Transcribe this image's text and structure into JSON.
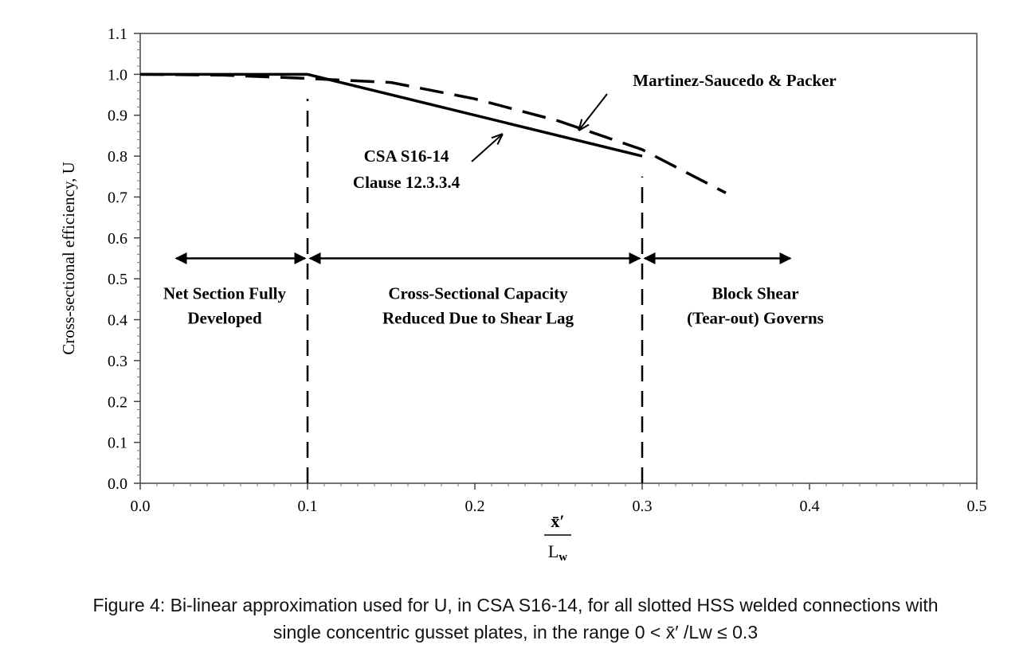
{
  "chart_data": {
    "type": "line",
    "title": "",
    "xlabel_num": "x̄′",
    "xlabel_den": "L",
    "xlabel_sub": "w",
    "ylabel": "Cross-sectional efficiency, U",
    "xlim": [
      0,
      0.5
    ],
    "ylim": [
      0,
      1.1
    ],
    "xticks": [
      "0.0",
      "0.1",
      "0.2",
      "0.3",
      "0.4",
      "0.5"
    ],
    "yticks": [
      "0.0",
      "0.1",
      "0.2",
      "0.3",
      "0.4",
      "0.5",
      "0.6",
      "0.7",
      "0.8",
      "0.9",
      "1.0",
      "1.1"
    ],
    "grid": false,
    "series": [
      {
        "name": "CSA S16-14 Clause 12.3.3.4",
        "style": "solid",
        "x": [
          0,
          0.1,
          0.3
        ],
        "y": [
          1.0,
          1.0,
          0.8
        ]
      },
      {
        "name": "Martinez-Saucedo & Packer",
        "style": "dashed",
        "x": [
          0,
          0.05,
          0.1,
          0.15,
          0.2,
          0.25,
          0.3,
          0.35
        ],
        "y": [
          1.0,
          0.998,
          0.99,
          0.98,
          0.94,
          0.886,
          0.816,
          0.71
        ]
      }
    ],
    "boundaries": [
      {
        "x": 0.1,
        "y_top": 0.94
      },
      {
        "x": 0.3,
        "y_top": 0.75
      }
    ],
    "region_arrow_y": 0.55,
    "regions": [
      {
        "x_from": 0.02,
        "x_to": 0.1,
        "line1": "Net Section Fully",
        "line2": "Developed"
      },
      {
        "x_from": 0.1,
        "x_to": 0.3,
        "line1": "Cross-Sectional Capacity",
        "line2": "Reduced Due to Shear Lag"
      },
      {
        "x_from": 0.3,
        "x_to": 0.39,
        "line1": "Block Shear",
        "line2": "(Tear-out) Governs"
      }
    ],
    "annotations": [
      {
        "text": "Martinez-Saucedo & Packer",
        "points_to": [
          0.26,
          0.88
        ]
      },
      {
        "line1": "CSA S16-14",
        "line2": "Clause 12.3.3.4",
        "points_to": [
          0.22,
          0.88
        ]
      }
    ]
  },
  "caption": {
    "line1": "Figure 4:  Bi-linear approximation used for U, in CSA S16-14, for all slotted HSS welded connections with",
    "line2": "single concentric gusset plates, in the range 0 < x̄′ /Lw ≤ 0.3"
  }
}
